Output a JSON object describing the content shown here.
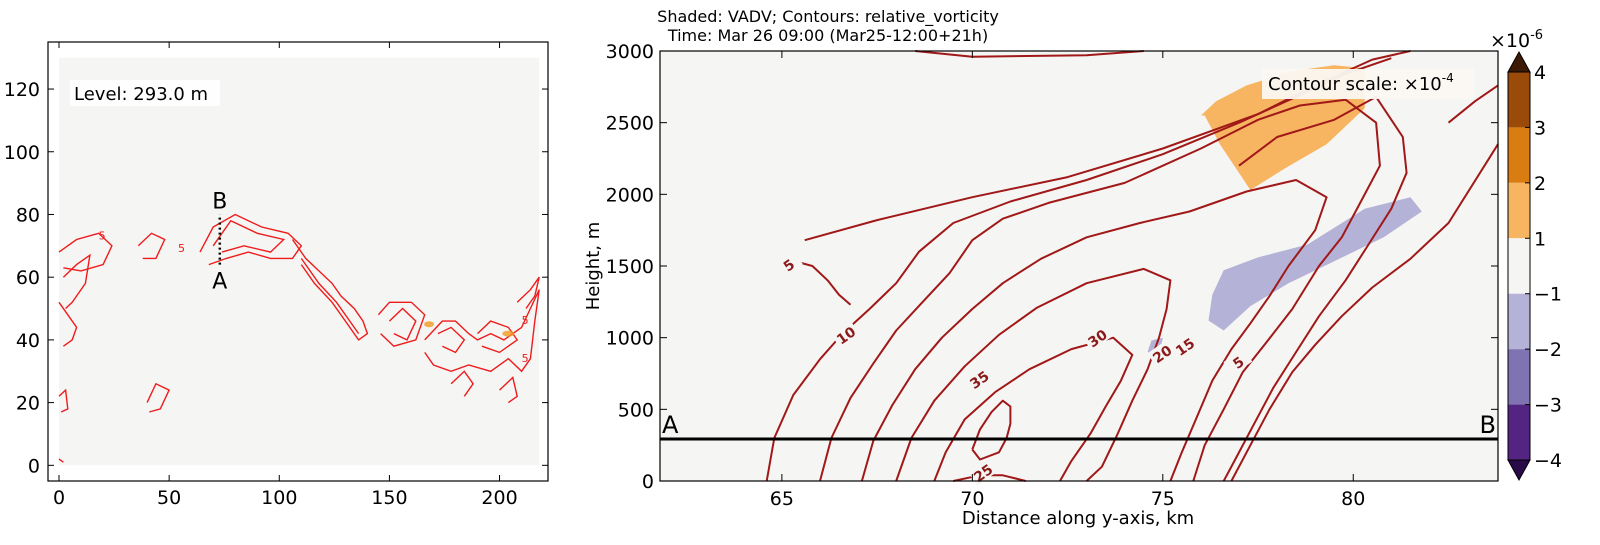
{
  "chart_data": [
    {
      "type": "contour",
      "panel": "left-map",
      "annotation": "Level: 293.0 m",
      "xlim": [
        -5,
        222
      ],
      "ylim": [
        -5,
        135
      ],
      "xticks": [
        0,
        50,
        100,
        150,
        200
      ],
      "yticks": [
        0,
        20,
        40,
        60,
        80,
        100,
        120
      ],
      "section_line": {
        "start_label": "A",
        "end_label": "B",
        "x": 73,
        "y_start": 64,
        "y_end": 80
      },
      "contour_labels": [
        "5",
        "5",
        "5",
        "5"
      ],
      "background_extent": {
        "x": [
          0,
          218
        ],
        "y": [
          0,
          130
        ]
      },
      "contour_color": "#ee1c1c"
    },
    {
      "type": "contour-filled",
      "panel": "right-cross-section",
      "title_line1": "Shaded: VADV; Contours: relative_vorticity",
      "title_line2": "Time: Mar 26 09:00 (Mar25-12:00+21h)",
      "xlabel": "Distance along y-axis, km",
      "ylabel": "Height, m",
      "xlim": [
        61.8,
        83.8
      ],
      "ylim": [
        0,
        3000
      ],
      "xticks": [
        65,
        70,
        75,
        80
      ],
      "yticks": [
        0,
        500,
        1000,
        1500,
        2000,
        2500,
        3000
      ],
      "contour_scale_text": "Contour scale: ×10",
      "contour_scale_exp": "-4",
      "horizontal_line": {
        "height": 293,
        "left_label": "A",
        "right_label": "B"
      },
      "contour_levels": [
        5,
        10,
        15,
        20,
        25,
        30,
        35
      ],
      "contour_labels": [
        {
          "text": "5",
          "x": 65.2,
          "y": 1500
        },
        {
          "text": "10",
          "x": 66.7,
          "y": 1010
        },
        {
          "text": "35",
          "x": 70.2,
          "y": 700
        },
        {
          "text": "30",
          "x": 73.3,
          "y": 990
        },
        {
          "text": "20",
          "x": 75.0,
          "y": 880
        },
        {
          "text": "15",
          "x": 75.6,
          "y": 930
        },
        {
          "text": "5",
          "x": 77.0,
          "y": 820
        },
        {
          "text": "25",
          "x": 70.3,
          "y": 50
        }
      ],
      "contour_color": "#a01818",
      "colorbar": {
        "multiplier_text": "×10",
        "multiplier_exp": "-6",
        "ticks": [
          "4",
          "3",
          "2",
          "1",
          "−1",
          "−2",
          "−3",
          "−4"
        ],
        "bins": [
          {
            "range": [
              3,
              4
            ],
            "color": "#9a4a09"
          },
          {
            "range": [
              2,
              3
            ],
            "color": "#d97d12"
          },
          {
            "range": [
              1,
              2
            ],
            "color": "#f7b461"
          },
          {
            "range": [
              -1,
              1
            ],
            "color": "#f5f5f3"
          },
          {
            "range": [
              -2,
              -1
            ],
            "color": "#b4b2d6"
          },
          {
            "range": [
              -3,
              -2
            ],
            "color": "#7f73b1"
          },
          {
            "range": [
              -4,
              -3
            ],
            "color": "#542482"
          }
        ],
        "over_color": "#3d1a06",
        "under_color": "#2a0b4a"
      },
      "shaded_regions": [
        {
          "name": "positive-vadv-region",
          "color": "#f7b461",
          "x": [
            76.1,
            76.5,
            77.3,
            78.2,
            79.3,
            80.3,
            80.3,
            79.5,
            78.4,
            77.2,
            76.4,
            76.0
          ],
          "y": [
            2550,
            2350,
            2030,
            2180,
            2350,
            2600,
            2880,
            2900,
            2860,
            2760,
            2650,
            2550
          ]
        },
        {
          "name": "negative-vadv-region",
          "color": "#b4b2d6",
          "x": [
            76.2,
            76.6,
            77.3,
            78.3,
            79.4,
            80.8,
            81.8,
            81.5,
            80.3,
            78.8,
            77.5,
            76.6,
            76.3
          ],
          "y": [
            1120,
            1050,
            1220,
            1380,
            1520,
            1700,
            1880,
            1980,
            1900,
            1650,
            1560,
            1470,
            1300
          ]
        },
        {
          "name": "small-negative-patch",
          "color": "#b4b2d6",
          "x": [
            74.7,
            75.0,
            74.9,
            74.6
          ],
          "y": [
            980,
            1000,
            870,
            900
          ]
        }
      ]
    }
  ]
}
